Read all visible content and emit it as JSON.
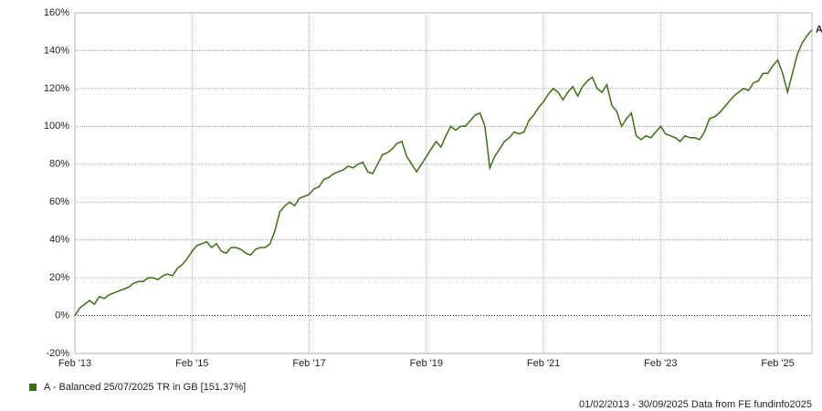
{
  "chart_data": {
    "type": "line",
    "x": [
      "2013-02",
      "2013-03",
      "2013-04",
      "2013-05",
      "2013-06",
      "2013-07",
      "2013-08",
      "2013-09",
      "2013-10",
      "2013-11",
      "2013-12",
      "2014-01",
      "2014-02",
      "2014-03",
      "2014-04",
      "2014-05",
      "2014-06",
      "2014-07",
      "2014-08",
      "2014-09",
      "2014-10",
      "2014-11",
      "2014-12",
      "2015-01",
      "2015-02",
      "2015-03",
      "2015-04",
      "2015-05",
      "2015-06",
      "2015-07",
      "2015-08",
      "2015-09",
      "2015-10",
      "2015-11",
      "2015-12",
      "2016-01",
      "2016-02",
      "2016-03",
      "2016-04",
      "2016-05",
      "2016-06",
      "2016-07",
      "2016-08",
      "2016-09",
      "2016-10",
      "2016-11",
      "2016-12",
      "2017-01",
      "2017-02",
      "2017-03",
      "2017-04",
      "2017-05",
      "2017-06",
      "2017-07",
      "2017-08",
      "2017-09",
      "2017-10",
      "2017-11",
      "2017-12",
      "2018-01",
      "2018-02",
      "2018-03",
      "2018-04",
      "2018-05",
      "2018-06",
      "2018-07",
      "2018-08",
      "2018-09",
      "2018-10",
      "2018-11",
      "2018-12",
      "2019-01",
      "2019-02",
      "2019-03",
      "2019-04",
      "2019-05",
      "2019-06",
      "2019-07",
      "2019-08",
      "2019-09",
      "2019-10",
      "2019-11",
      "2019-12",
      "2020-01",
      "2020-02",
      "2020-03",
      "2020-04",
      "2020-05",
      "2020-06",
      "2020-07",
      "2020-08",
      "2020-09",
      "2020-10",
      "2020-11",
      "2020-12",
      "2021-01",
      "2021-02",
      "2021-03",
      "2021-04",
      "2021-05",
      "2021-06",
      "2021-07",
      "2021-08",
      "2021-09",
      "2021-10",
      "2021-11",
      "2021-12",
      "2022-01",
      "2022-02",
      "2022-03",
      "2022-04",
      "2022-05",
      "2022-06",
      "2022-07",
      "2022-08",
      "2022-09",
      "2022-10",
      "2022-11",
      "2022-12",
      "2023-01",
      "2023-02",
      "2023-03",
      "2023-04",
      "2023-05",
      "2023-06",
      "2023-07",
      "2023-08",
      "2023-09",
      "2023-10",
      "2023-11",
      "2023-12",
      "2024-01",
      "2024-02",
      "2024-03",
      "2024-04",
      "2024-05",
      "2024-06",
      "2024-07",
      "2024-08",
      "2024-09",
      "2024-10",
      "2024-11",
      "2024-12",
      "2025-01",
      "2025-02",
      "2025-03",
      "2025-04",
      "2025-05",
      "2025-06",
      "2025-07",
      "2025-08",
      "2025-09"
    ],
    "series": [
      {
        "name": "A - Balanced 25/07/2025 TR in GB [151.37%]",
        "color": "#3a7013",
        "values": [
          0,
          4,
          6,
          8,
          6,
          10,
          9,
          11,
          12,
          13,
          14,
          15,
          17,
          18,
          18,
          20,
          20,
          19,
          21,
          22,
          21,
          25,
          27,
          30,
          34,
          37,
          38,
          39,
          36,
          38,
          34,
          33,
          36,
          36,
          35,
          33,
          32,
          35,
          36,
          36,
          38,
          45,
          55,
          58,
          60,
          58,
          62,
          63,
          64,
          67,
          68,
          72,
          73,
          75,
          76,
          77,
          79,
          78,
          80,
          81,
          76,
          75,
          80,
          85,
          86,
          88,
          91,
          92,
          84,
          80,
          76,
          80,
          84,
          88,
          92,
          89,
          95,
          100,
          98,
          100,
          100,
          103,
          106,
          107,
          100,
          78,
          84,
          88,
          92,
          94,
          97,
          96,
          97,
          103,
          106,
          110,
          113,
          117,
          120,
          118,
          114,
          118,
          121,
          116,
          121,
          124,
          126,
          120,
          118,
          122,
          111,
          108,
          100,
          104,
          107,
          95,
          93,
          95,
          94,
          97,
          100,
          96,
          95,
          94,
          92,
          95,
          94,
          94,
          93,
          97,
          104,
          105,
          107,
          110,
          113,
          116,
          118,
          120,
          119,
          123,
          124,
          128,
          128,
          132,
          135,
          128,
          118,
          128,
          138,
          144,
          148,
          151
        ]
      }
    ],
    "end_label": "A",
    "xlim": [
      "2013-02",
      "2025-09"
    ],
    "xticks": [
      {
        "value": "2013-02",
        "label": "Feb '13"
      },
      {
        "value": "2015-02",
        "label": "Feb '15"
      },
      {
        "value": "2017-02",
        "label": "Feb '17"
      },
      {
        "value": "2019-02",
        "label": "Feb '19"
      },
      {
        "value": "2021-02",
        "label": "Feb '21"
      },
      {
        "value": "2023-02",
        "label": "Feb '23"
      },
      {
        "value": "2025-02",
        "label": "Feb '25"
      }
    ],
    "ylim": [
      -20,
      160
    ],
    "yticks": [
      {
        "value": -20,
        "label": "-20%"
      },
      {
        "value": 0,
        "label": "0%"
      },
      {
        "value": 20,
        "label": "20%"
      },
      {
        "value": 40,
        "label": "40%"
      },
      {
        "value": 60,
        "label": "60%"
      },
      {
        "value": 80,
        "label": "80%"
      },
      {
        "value": 100,
        "label": "100%"
      },
      {
        "value": 120,
        "label": "120%"
      },
      {
        "value": 140,
        "label": "140%"
      },
      {
        "value": 160,
        "label": "160%"
      }
    ],
    "grid": true,
    "footer": "01/02/2013 - 30/09/2025 Data from FE fundinfo2025"
  }
}
